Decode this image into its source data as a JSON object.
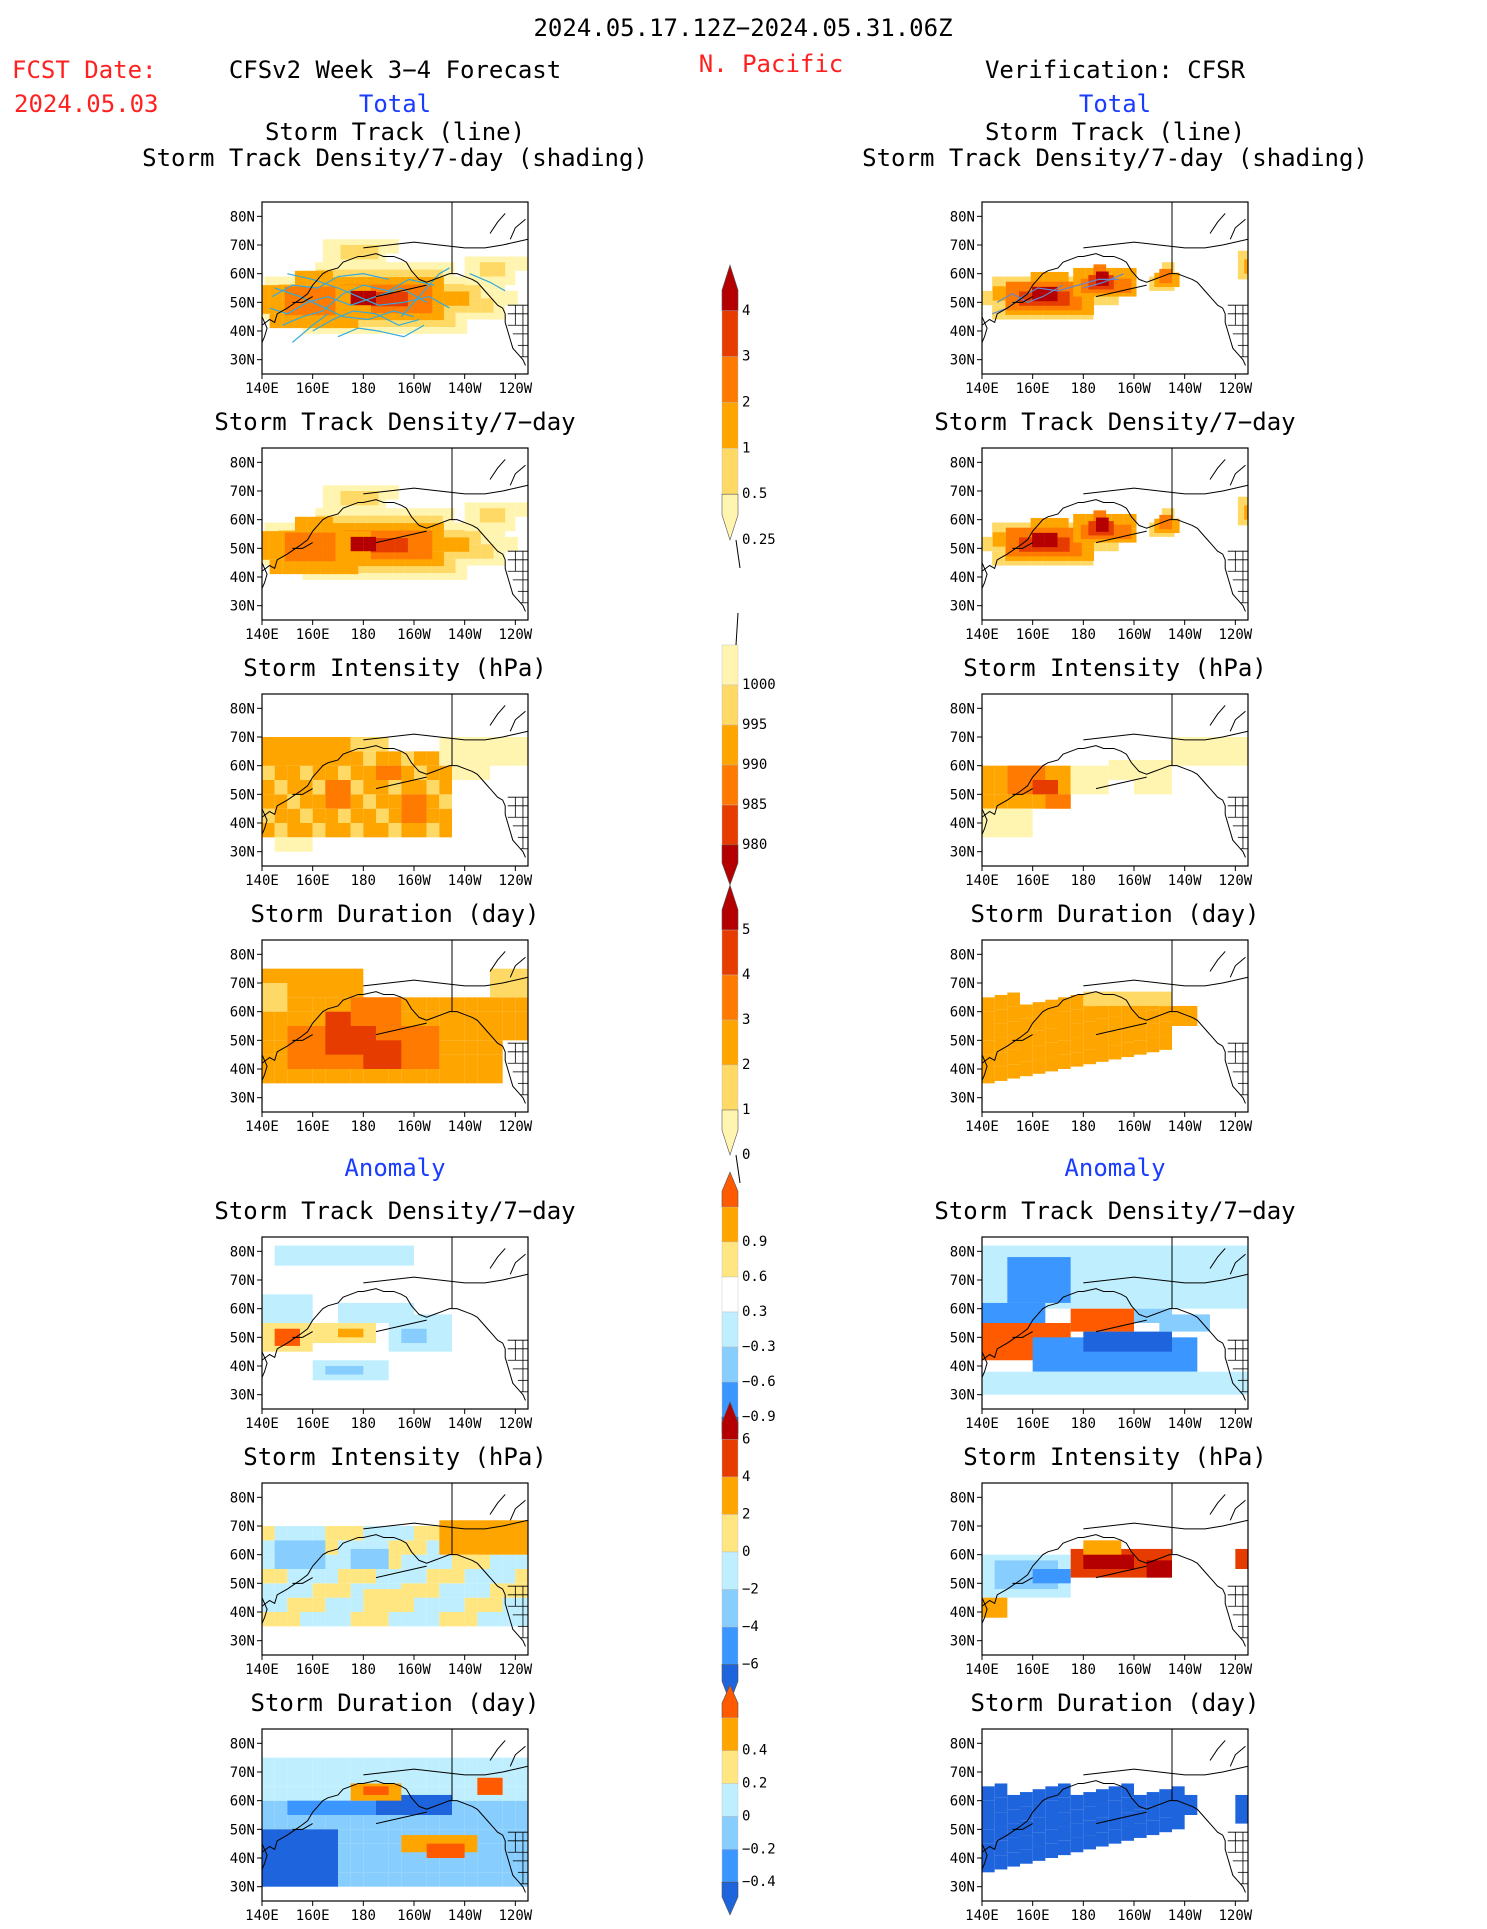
{
  "header": {
    "period": "2024.05.17.12Z−2024.05.31.06Z",
    "fcst_label": "FCST Date:",
    "fcst_date": "2024.05.03",
    "forecast_title": "CFSv2 Week 3−4 Forecast",
    "region": "N. Pacific",
    "verification_title": "Verification: CFSR"
  },
  "sections": {
    "total_label": "Total",
    "anomaly_label": "Anomaly"
  },
  "axes": {
    "lat_ticks": [
      "80N",
      "70N",
      "60N",
      "50N",
      "40N",
      "30N"
    ],
    "lon_ticks": [
      "140E",
      "160E",
      "180",
      "160W",
      "140W",
      "120W"
    ]
  },
  "colors": {
    "pos": [
      "#fff5b0",
      "#ffd966",
      "#ffa500",
      "#ff7a00",
      "#e63c00",
      "#b40000"
    ],
    "neg": [
      "#bfefff",
      "#87ceff",
      "#3c96ff",
      "#1e64dc"
    ],
    "track_line_fcst": "#33aadd",
    "track_line_obs": "#6688cc"
  },
  "panels": [
    {
      "id": "fc-track",
      "title1": "Storm Track (line)",
      "title2": "Storm Track Density/7-day (shading)"
    },
    {
      "id": "ob-track",
      "title1": "Storm Track (line)",
      "title2": "Storm Track Density/7-day (shading)"
    },
    {
      "id": "fc-density",
      "title1": "Storm Track Density/7−day"
    },
    {
      "id": "ob-density",
      "title1": "Storm Track Density/7−day"
    },
    {
      "id": "fc-intensity",
      "title1": "Storm Intensity (hPa)"
    },
    {
      "id": "ob-intensity",
      "title1": "Storm Intensity (hPa)"
    },
    {
      "id": "fc-duration",
      "title1": "Storm Duration (day)"
    },
    {
      "id": "ob-duration",
      "title1": "Storm Duration (day)"
    },
    {
      "id": "fc-anom-density",
      "title1": "Storm Track Density/7−day"
    },
    {
      "id": "ob-anom-density",
      "title1": "Storm Track Density/7−day"
    },
    {
      "id": "fc-anom-intensity",
      "title1": "Storm Intensity (hPa)"
    },
    {
      "id": "ob-anom-intensity",
      "title1": "Storm Intensity (hPa)"
    },
    {
      "id": "fc-anom-duration",
      "title1": "Storm Duration (day)"
    },
    {
      "id": "ob-anom-duration",
      "title1": "Storm Duration (day)"
    }
  ],
  "colorbars": [
    {
      "id": "cb-density",
      "labels": [
        "4",
        "3",
        "2",
        "1",
        "0.5",
        "0.25"
      ],
      "colors": [
        "#b40000",
        "#e63c00",
        "#ff7a00",
        "#ffa500",
        "#ffd966",
        "#fff5b0"
      ]
    },
    {
      "id": "cb-intensity",
      "labels": [
        "1000",
        "995",
        "990",
        "985",
        "980"
      ],
      "colors": [
        "#fff5b0",
        "#ffd966",
        "#ffa500",
        "#ff7a00",
        "#e63c00",
        "#b40000"
      ]
    },
    {
      "id": "cb-duration",
      "labels": [
        "5",
        "4",
        "3",
        "2",
        "1",
        "0"
      ],
      "colors": [
        "#b40000",
        "#e63c00",
        "#ff7a00",
        "#ffa500",
        "#ffd966",
        "#fff5b0"
      ]
    },
    {
      "id": "cb-anom-density",
      "labels": [
        "0.9",
        "0.6",
        "0.3",
        "−0.3",
        "−0.6",
        "−0.9"
      ],
      "colors": [
        "#ff5a00",
        "#ffa500",
        "#ffe680",
        "#ffffff",
        "#bfefff",
        "#87ceff",
        "#3c96ff",
        "#1e64dc"
      ]
    },
    {
      "id": "cb-anom-intensity",
      "labels": [
        "6",
        "4",
        "2",
        "0",
        "−2",
        "−4",
        "−6"
      ],
      "colors": [
        "#b40000",
        "#e63c00",
        "#ffa500",
        "#ffe680",
        "#bfefff",
        "#87ceff",
        "#3c96ff",
        "#1e64dc"
      ]
    },
    {
      "id": "cb-anom-duration",
      "labels": [
        "0.4",
        "0.2",
        "0",
        "−0.2",
        "−0.4"
      ],
      "colors": [
        "#ff5a00",
        "#ffa500",
        "#ffe680",
        "#bfefff",
        "#87ceff",
        "#3c96ff",
        "#1e64dc"
      ]
    }
  ],
  "chart_data": {
    "type": "heatmap",
    "description_units": {
      "lat_range": [
        25,
        85
      ],
      "lon_range": [
        140,
        245
      ]
    },
    "track_density_scale": [
      0.25,
      0.5,
      1,
      2,
      3,
      4
    ],
    "intensity_scale_hPa": [
      980,
      985,
      990,
      995,
      1000
    ],
    "duration_scale_day": [
      0,
      1,
      2,
      3,
      4,
      5
    ],
    "anom_density_scale": [
      -0.9,
      -0.6,
      -0.3,
      0.3,
      0.6,
      0.9
    ],
    "anom_intensity_scale_hPa": [
      -6,
      -4,
      -2,
      0,
      2,
      4,
      6
    ],
    "anom_duration_scale_day": [
      -0.4,
      -0.2,
      0,
      0.2,
      0.4
    ]
  }
}
